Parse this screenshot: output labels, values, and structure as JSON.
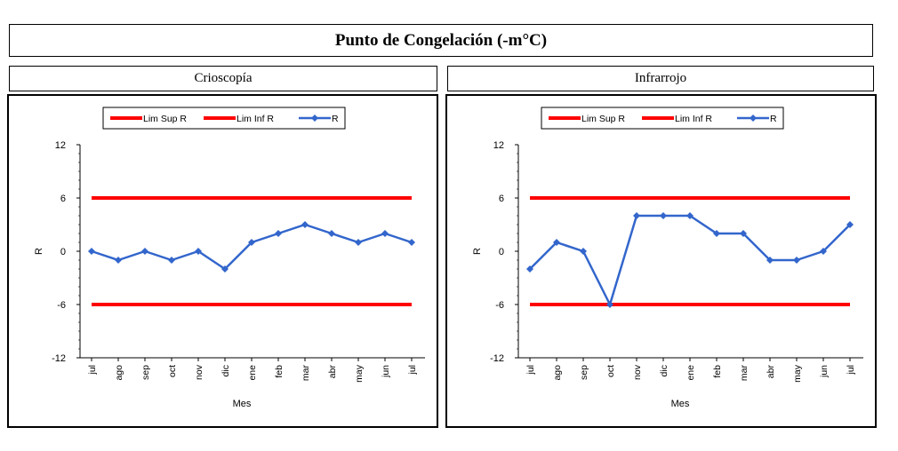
{
  "page_title": "Punto de Congelación  (-m°C)",
  "colors": {
    "limit": "#ff0000",
    "series": "#3366cc"
  },
  "chart_data": [
    {
      "type": "line",
      "title": "Crioscopía",
      "xlabel": "Mes",
      "ylabel": "R",
      "ylim": [
        -12,
        12
      ],
      "yticks": [
        12,
        6,
        0,
        -6,
        -12
      ],
      "categories": [
        "jul",
        "ago",
        "sep",
        "oct",
        "nov",
        "dic",
        "ene",
        "feb",
        "mar",
        "abr",
        "may",
        "jun",
        "jul"
      ],
      "legend": [
        "Lim Sup R",
        "Lim Inf R",
        "R"
      ],
      "series": [
        {
          "name": "Lim Sup R",
          "values": [
            6,
            6,
            6,
            6,
            6,
            6,
            6,
            6,
            6,
            6,
            6,
            6,
            6
          ]
        },
        {
          "name": "Lim Inf R",
          "values": [
            -6,
            -6,
            -6,
            -6,
            -6,
            -6,
            -6,
            -6,
            -6,
            -6,
            -6,
            -6,
            -6
          ]
        },
        {
          "name": "R",
          "values": [
            0,
            -1,
            0,
            -1,
            0,
            -2,
            1,
            2,
            3,
            2,
            1,
            2,
            1
          ]
        }
      ]
    },
    {
      "type": "line",
      "title": "Infrarrojo",
      "xlabel": "Mes",
      "ylabel": "R",
      "ylim": [
        -12,
        12
      ],
      "yticks": [
        12,
        6,
        0,
        -6,
        -12
      ],
      "categories": [
        "jul",
        "ago",
        "sep",
        "oct",
        "nov",
        "dic",
        "ene",
        "feb",
        "mar",
        "abr",
        "may",
        "jun",
        "jul"
      ],
      "legend": [
        "Lim Sup R",
        "Lim Inf R",
        "R"
      ],
      "series": [
        {
          "name": "Lim Sup R",
          "values": [
            6,
            6,
            6,
            6,
            6,
            6,
            6,
            6,
            6,
            6,
            6,
            6,
            6
          ]
        },
        {
          "name": "Lim Inf R",
          "values": [
            -6,
            -6,
            -6,
            -6,
            -6,
            -6,
            -6,
            -6,
            -6,
            -6,
            -6,
            -6,
            -6
          ]
        },
        {
          "name": "R",
          "values": [
            -2,
            1,
            0,
            -6,
            4,
            4,
            4,
            2,
            2,
            -1,
            -1,
            0,
            3
          ]
        }
      ]
    }
  ]
}
